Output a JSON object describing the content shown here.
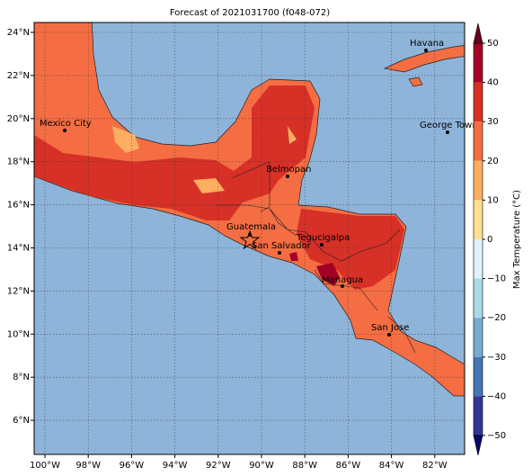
{
  "title": "Forecast of 2021031700 (f048-072)",
  "map": {
    "lon_ticks": [
      {
        "value": -100,
        "label": "100°W"
      },
      {
        "value": -98,
        "label": "98°W"
      },
      {
        "value": -96,
        "label": "96°W"
      },
      {
        "value": -94,
        "label": "94°W"
      },
      {
        "value": -92,
        "label": "92°W"
      },
      {
        "value": -90,
        "label": "90°W"
      },
      {
        "value": -88,
        "label": "88°W"
      },
      {
        "value": -86,
        "label": "86°W"
      },
      {
        "value": -84,
        "label": "84°W"
      },
      {
        "value": -82,
        "label": "82°W"
      }
    ],
    "lat_ticks": [
      {
        "value": 24,
        "label": "24°N"
      },
      {
        "value": 22,
        "label": "22°N"
      },
      {
        "value": 20,
        "label": "20°N"
      },
      {
        "value": 18,
        "label": "18°N"
      },
      {
        "value": 16,
        "label": "16°N"
      },
      {
        "value": 14,
        "label": "14°N"
      },
      {
        "value": 12,
        "label": "12°N"
      },
      {
        "value": 10,
        "label": "10°N"
      },
      {
        "value": 8,
        "label": "8°N"
      },
      {
        "value": 6,
        "label": "6°N"
      }
    ],
    "cities": [
      "Mexico City",
      "Belmopan",
      "Guatemala",
      "San Salvador",
      "Tegucigalpa",
      "Managua",
      "San Jose",
      "Havana",
      "George Town"
    ]
  },
  "colorbar": {
    "label": "Max Temperature (°C)",
    "ticks": [
      50,
      40,
      30,
      20,
      10,
      0,
      {
        "value": -10,
        "label": "−10"
      },
      {
        "value": -20,
        "label": "−20"
      },
      {
        "value": -30,
        "label": "−30"
      },
      {
        "value": -40,
        "label": "−40"
      },
      {
        "value": -50,
        "label": "−50"
      }
    ],
    "colors": [
      "#a50026",
      "#d73027",
      "#f46d43",
      "#fdae61",
      "#fee090",
      "#e0f3f8",
      "#abd9e9",
      "#74add1",
      "#4575b4",
      "#313695"
    ],
    "extend_colors": [
      "#67001f",
      "#08086b"
    ]
  }
}
